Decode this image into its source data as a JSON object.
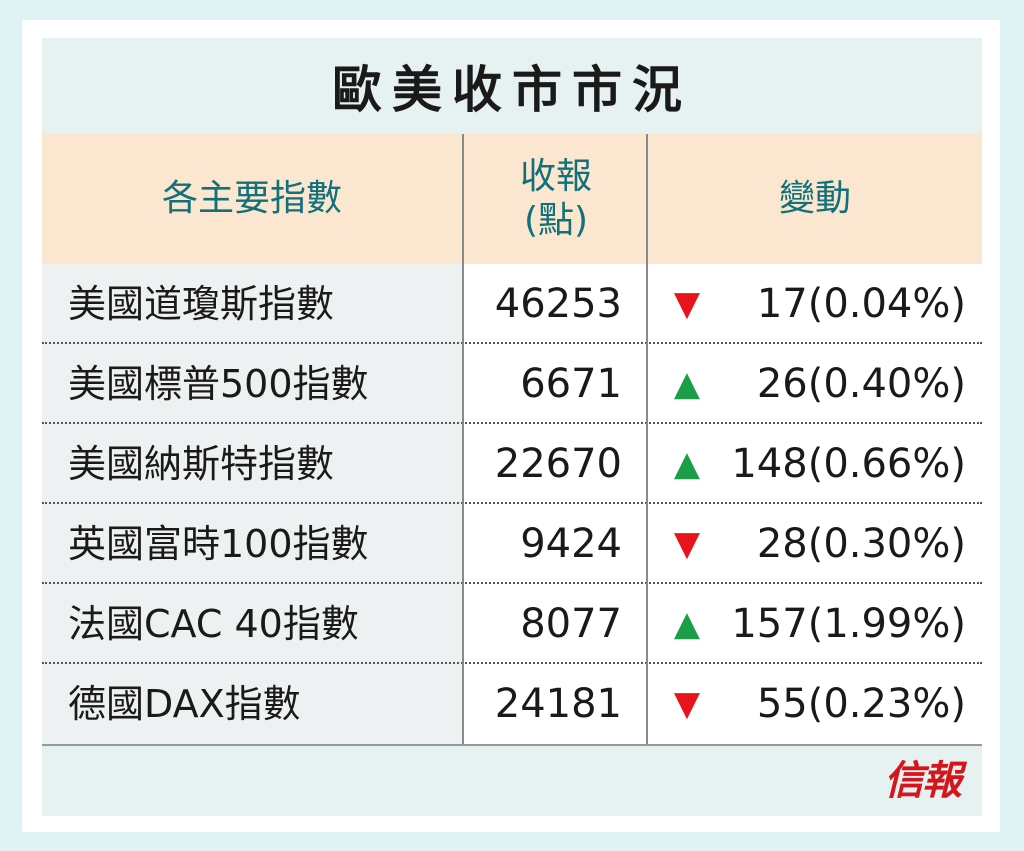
{
  "title": "歐美收市市況",
  "headers": {
    "index": "各主要指數",
    "close_line1": "收報",
    "close_line2": "(點)",
    "change": "變動"
  },
  "colors": {
    "down": "#e8141c",
    "up": "#1a9e48",
    "header_text": "#11707a",
    "header_bg": "#fbe6cf"
  },
  "rows": [
    {
      "name": "美國道瓊斯指數",
      "close": "46253",
      "direction": "down",
      "arrow": "▼",
      "change": "17(0.04%)"
    },
    {
      "name": "美國標普500指數",
      "close": "6671",
      "direction": "up",
      "arrow": "▲",
      "change": "26(0.40%)"
    },
    {
      "name": "美國納斯特指數",
      "close": "22670",
      "direction": "up",
      "arrow": "▲",
      "change": "148(0.66%)"
    },
    {
      "name": "英國富時100指數",
      "close": "9424",
      "direction": "down",
      "arrow": "▼",
      "change": "28(0.30%)"
    },
    {
      "name": "法國CAC 40指數",
      "close": "8077",
      "direction": "up",
      "arrow": "▲",
      "change": "157(1.99%)"
    },
    {
      "name": "德國DAX指數",
      "close": "24181",
      "direction": "down",
      "arrow": "▼",
      "change": "55(0.23%)"
    }
  ],
  "logo": "信報"
}
